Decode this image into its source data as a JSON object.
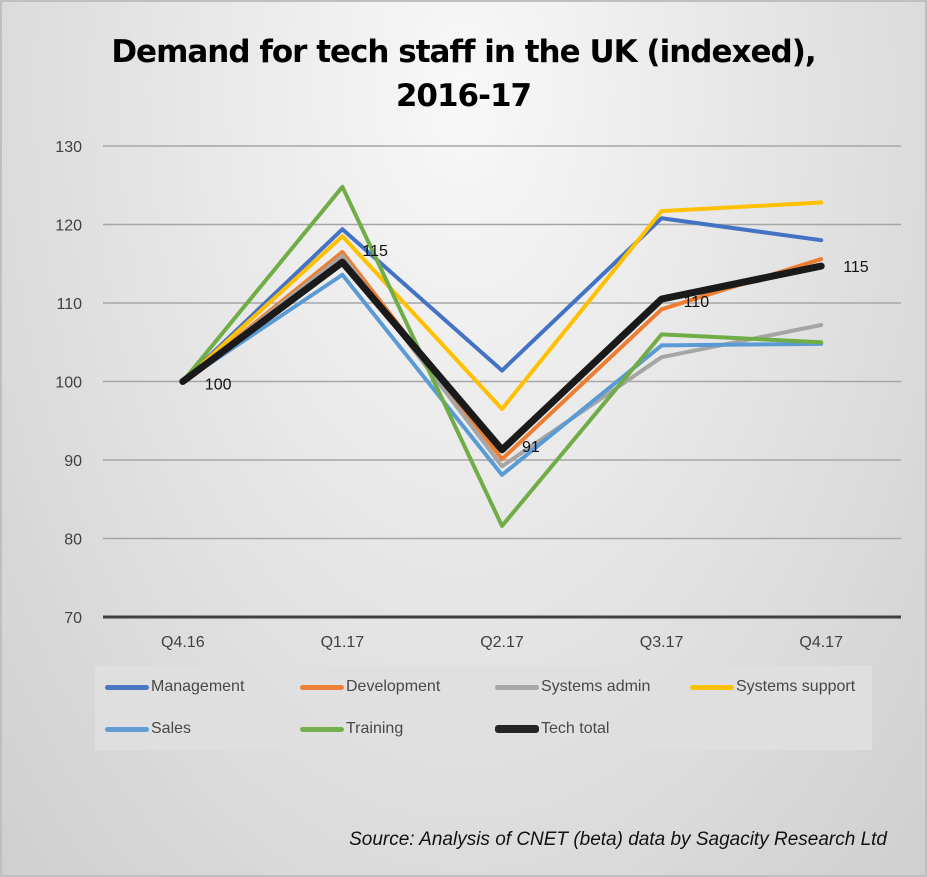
{
  "chart_data": {
    "type": "line",
    "title": "Demand for tech staff in the UK (indexed),",
    "title_line2": "2016-17",
    "xlabel": "",
    "ylabel": "",
    "categories": [
      "Q4.16",
      "Q1.17",
      "Q2.17",
      "Q3.17",
      "Q4.17"
    ],
    "ylim": [
      70,
      130
    ],
    "yticks": [
      "70",
      "80",
      "90",
      "100",
      "110",
      "120",
      "130"
    ],
    "grid": true,
    "legend_position": "bottom",
    "series": [
      {
        "name": "Management",
        "color": "#4472c4",
        "values": [
          100,
          119.4,
          101.4,
          120.8,
          118.0
        ]
      },
      {
        "name": "Development",
        "color": "#ed7d31",
        "values": [
          100,
          116.5,
          90.1,
          109.2,
          115.6
        ]
      },
      {
        "name": "Systems admin",
        "color": "#a5a5a5",
        "values": [
          100,
          116.0,
          89.2,
          103.1,
          107.2
        ]
      },
      {
        "name": "Systems support",
        "color": "#ffc000",
        "values": [
          100,
          118.5,
          96.5,
          121.7,
          122.8
        ]
      },
      {
        "name": "Sales",
        "color": "#5b9bd5",
        "values": [
          100,
          113.6,
          88.1,
          104.6,
          104.8
        ]
      },
      {
        "name": "Training",
        "color": "#70ad47",
        "values": [
          100,
          124.8,
          81.6,
          106.0,
          105.0
        ]
      },
      {
        "name": "Tech total",
        "color": "#1a1a1a",
        "values": [
          100,
          115.2,
          91.3,
          110.5,
          114.7
        ]
      }
    ],
    "data_labels": [
      {
        "series": "Tech total",
        "index": 0,
        "text": "100"
      },
      {
        "series": "Tech total",
        "index": 1,
        "text": "115"
      },
      {
        "series": "Tech total",
        "index": 2,
        "text": "91"
      },
      {
        "series": "Tech total",
        "index": 3,
        "text": "110"
      },
      {
        "series": "Tech total",
        "index": 4,
        "text": "115"
      }
    ],
    "source": "Source: Analysis of CNET (beta) data by Sagacity Research Ltd"
  }
}
